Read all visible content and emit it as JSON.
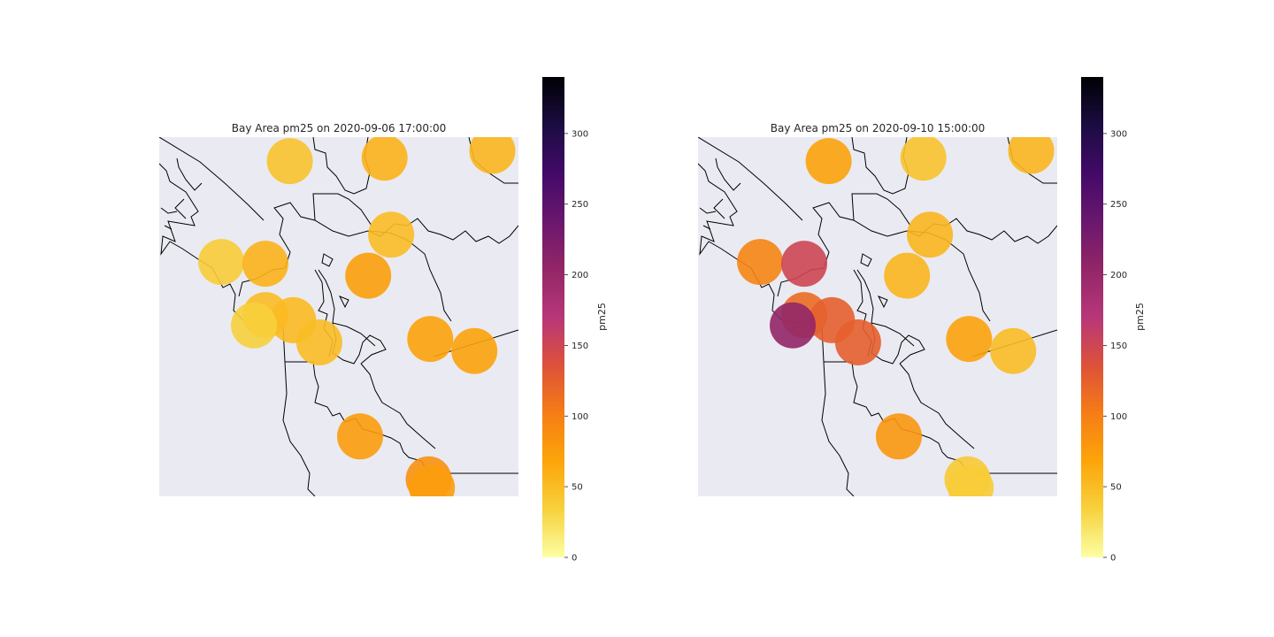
{
  "colormap": {
    "name": "inferno_r",
    "stops": [
      "#fcffa4",
      "#f7d13d",
      "#fca50a",
      "#f57d15",
      "#dd513a",
      "#b73779",
      "#932667",
      "#6a176e",
      "#420a68",
      "#1b0c41",
      "#000004"
    ]
  },
  "land_color": "#eaeaf2",
  "coast_color": "#000000",
  "panels": [
    {
      "title": "Bay Area pm25 on 2020-09-06 17:00:00",
      "colorbar": {
        "label": "pm25",
        "min": 0,
        "max": 340,
        "ticks": [
          "0",
          "50",
          "100",
          "150",
          "200",
          "250",
          "300"
        ]
      },
      "stations": [
        {
          "lon": -121.52,
          "lat": 38.58,
          "pm25": 58
        },
        {
          "lon": -120.86,
          "lat": 38.62,
          "pm25": 55
        },
        {
          "lon": -122.1,
          "lat": 38.56,
          "pm25": 45
        },
        {
          "lon": -121.48,
          "lat": 38.13,
          "pm25": 50
        },
        {
          "lon": -122.52,
          "lat": 37.97,
          "pm25": 38
        },
        {
          "lon": -122.25,
          "lat": 37.96,
          "pm25": 58
        },
        {
          "lon": -121.62,
          "lat": 37.89,
          "pm25": 72
        },
        {
          "lon": -122.25,
          "lat": 37.66,
          "pm25": 50
        },
        {
          "lon": -122.08,
          "lat": 37.63,
          "pm25": 52
        },
        {
          "lon": -122.32,
          "lat": 37.6,
          "pm25": 35
        },
        {
          "lon": -121.92,
          "lat": 37.5,
          "pm25": 50
        },
        {
          "lon": -121.24,
          "lat": 37.52,
          "pm25": 70
        },
        {
          "lon": -120.97,
          "lat": 37.45,
          "pm25": 70
        },
        {
          "lon": -121.67,
          "lat": 36.95,
          "pm25": 75
        },
        {
          "lon": -121.25,
          "lat": 36.7,
          "pm25": 85
        },
        {
          "lon": -121.23,
          "lat": 36.65,
          "pm25": 75
        }
      ]
    },
    {
      "title": "Bay Area pm25 on 2020-09-10 15:00:00",
      "colorbar": {
        "label": "pm25",
        "min": 0,
        "max": 340,
        "ticks": [
          "0",
          "50",
          "100",
          "150",
          "200",
          "250",
          "300"
        ]
      },
      "stations": [
        {
          "lon": -121.52,
          "lat": 38.58,
          "pm25": 45
        },
        {
          "lon": -120.86,
          "lat": 38.62,
          "pm25": 55
        },
        {
          "lon": -122.1,
          "lat": 38.56,
          "pm25": 70
        },
        {
          "lon": -121.48,
          "lat": 38.13,
          "pm25": 55
        },
        {
          "lon": -122.52,
          "lat": 37.97,
          "pm25": 95
        },
        {
          "lon": -122.25,
          "lat": 37.96,
          "pm25": 150
        },
        {
          "lon": -121.62,
          "lat": 37.89,
          "pm25": 55
        },
        {
          "lon": -122.25,
          "lat": 37.66,
          "pm25": 115
        },
        {
          "lon": -122.08,
          "lat": 37.63,
          "pm25": 125
        },
        {
          "lon": -122.32,
          "lat": 37.6,
          "pm25": 205
        },
        {
          "lon": -121.92,
          "lat": 37.5,
          "pm25": 125
        },
        {
          "lon": -121.24,
          "lat": 37.52,
          "pm25": 70
        },
        {
          "lon": -120.97,
          "lat": 37.45,
          "pm25": 50
        },
        {
          "lon": -121.67,
          "lat": 36.95,
          "pm25": 80
        },
        {
          "lon": -121.25,
          "lat": 36.7,
          "pm25": 40
        },
        {
          "lon": -121.23,
          "lat": 36.65,
          "pm25": 38
        }
      ]
    }
  ]
}
